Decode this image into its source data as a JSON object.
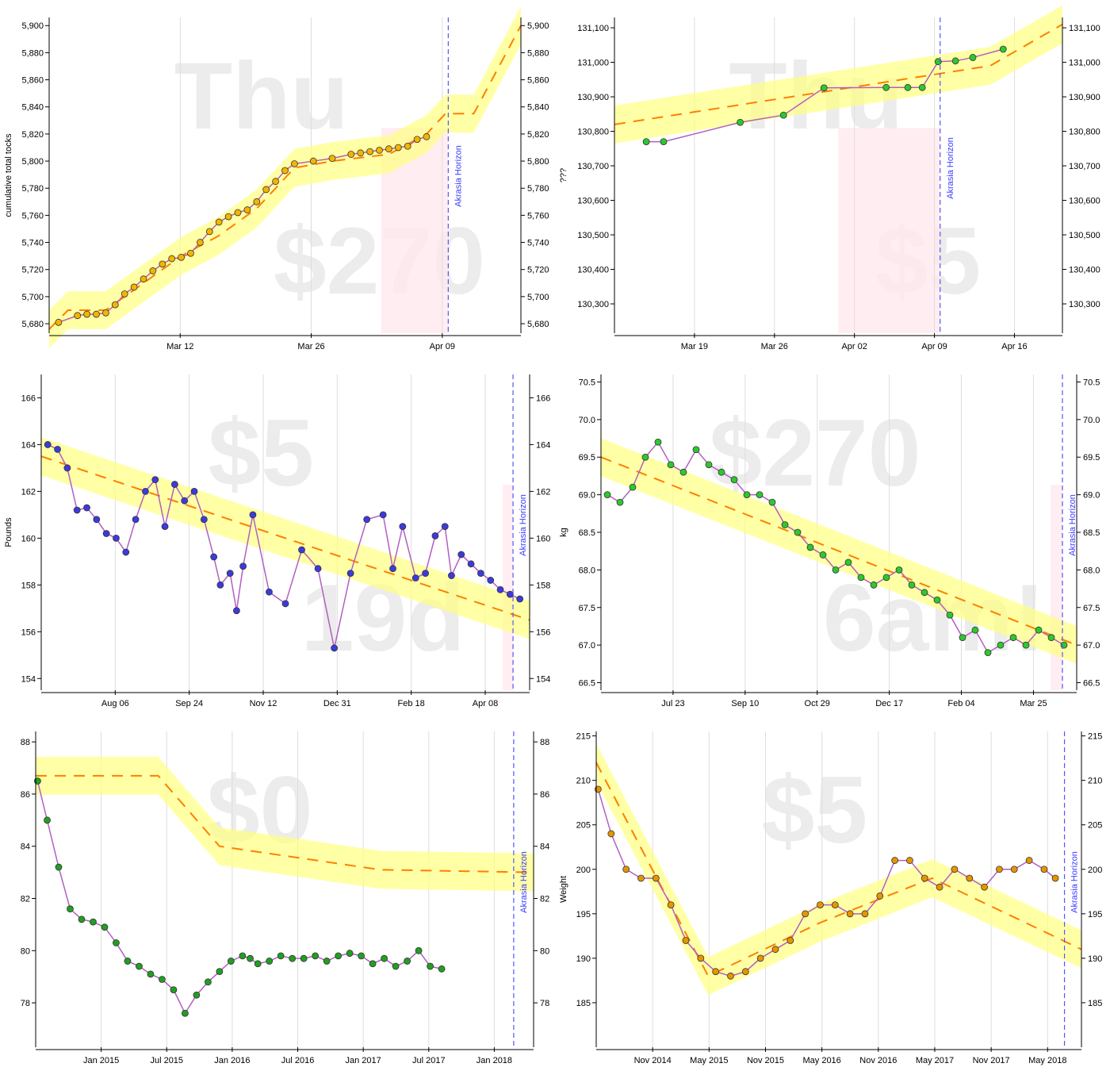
{
  "chart_data": [
    {
      "type": "line",
      "ylabel": "cumulative total tocks",
      "watermark_top": "Thu",
      "watermark_bottom": "$270",
      "horizon_label": "Akrasia Horizon",
      "x_ticks": [
        "Mar 12",
        "Mar 26",
        "Apr 09"
      ],
      "y_ticks": [
        "5,680",
        "5,700",
        "5,720",
        "5,740",
        "5,760",
        "5,780",
        "5,800",
        "5,820",
        "5,840",
        "5,860",
        "5,880",
        "5,900"
      ],
      "ylim": [
        5673,
        5906
      ],
      "xlim_days": [
        0,
        50
      ],
      "grid": true,
      "series": [
        {
          "values_x": [
            1,
            3,
            4,
            5,
            6,
            7,
            8,
            9,
            10,
            11,
            12,
            13,
            14,
            15,
            16,
            17,
            18,
            19,
            20,
            21,
            22,
            23,
            24,
            25,
            26,
            28,
            30,
            32,
            33,
            34,
            35,
            36,
            37,
            38,
            39,
            40
          ],
          "values_y": [
            5681,
            5686,
            5687,
            5687,
            5688,
            5694,
            5702,
            5707,
            5713,
            5719,
            5724,
            5728,
            5729,
            5732,
            5740,
            5748,
            5755,
            5759,
            5762,
            5764,
            5770,
            5779,
            5785,
            5793,
            5798,
            5800,
            5802,
            5805,
            5806,
            5807,
            5808,
            5809,
            5810,
            5811,
            5816,
            5818
          ]
        }
      ],
      "road": [
        [
          0,
          5676
        ],
        [
          2,
          5690
        ],
        [
          6,
          5690
        ],
        [
          10,
          5710
        ],
        [
          14,
          5730
        ],
        [
          18,
          5745
        ],
        [
          22,
          5765
        ],
        [
          26,
          5795
        ],
        [
          30,
          5800
        ],
        [
          36,
          5805
        ],
        [
          40,
          5820
        ],
        [
          42,
          5835
        ],
        [
          45,
          5835
        ],
        [
          50,
          5900
        ]
      ]
    },
    {
      "type": "line",
      "ylabel": "???",
      "watermark_top": "Thu",
      "watermark_bottom": "$5",
      "horizon_label": "Akrasia Horizon",
      "x_ticks": [
        "Mar 19",
        "Mar 26",
        "Apr 02",
        "Apr 09",
        "Apr 16"
      ],
      "y_ticks": [
        "130,300",
        "130,400",
        "130,500",
        "130,600",
        "130,700",
        "130,800",
        "130,900",
        "131,000",
        "131,100"
      ],
      "ylim": [
        130215,
        131130
      ],
      "xlim_days": [
        -1,
        30
      ],
      "grid": true,
      "series": [
        {
          "values_x": [
            1.2,
            2.4,
            7.7,
            10.7,
            13.5,
            17.8,
            19.3,
            20.3,
            21.4,
            22.6,
            23.8,
            25.9
          ],
          "values_y": [
            130770,
            130770,
            130826,
            130847,
            130926,
            130927,
            130927,
            130927,
            131002,
            131004,
            131014,
            131038
          ]
        }
      ],
      "road": [
        [
          -1,
          130820
        ],
        [
          25,
          130990
        ],
        [
          30,
          131110
        ]
      ]
    },
    {
      "type": "line",
      "ylabel": "Pounds",
      "watermark_top": "$5",
      "watermark_bottom": "19d",
      "horizon_label": "Akrasia Horizon",
      "x_ticks": [
        "Aug 06",
        "Sep 24",
        "Nov 12",
        "Dec 31",
        "Feb 18",
        "Apr 08"
      ],
      "y_ticks": [
        "154",
        "156",
        "158",
        "160",
        "162",
        "164",
        "166"
      ],
      "ylim": [
        153.5,
        167
      ],
      "xlim_days": [
        0,
        300
      ],
      "grid": true,
      "series": [
        {
          "values_x": [
            4,
            10,
            16,
            22,
            28,
            34,
            40,
            46,
            52,
            58,
            64,
            70,
            76,
            82,
            88,
            94,
            100,
            106,
            110,
            116,
            120,
            124,
            130,
            140,
            150,
            160,
            170,
            180,
            190,
            200,
            210,
            216,
            222,
            230,
            236,
            242,
            248,
            252,
            258,
            264,
            270,
            276,
            282,
            288,
            294
          ],
          "values_y": [
            164,
            163.8,
            163,
            161.2,
            161.3,
            160.8,
            160.2,
            160,
            159.4,
            160.8,
            162,
            162.5,
            160.5,
            162.3,
            161.6,
            162,
            160.8,
            159.2,
            158,
            158.5,
            156.9,
            158.8,
            161,
            157.7,
            157.2,
            159.5,
            158.7,
            155.3,
            158.5,
            160.8,
            161,
            158.7,
            160.5,
            158.3,
            158.5,
            160.1,
            160.5,
            158.4,
            159.3,
            158.9,
            158.5,
            158.2,
            157.8,
            157.6,
            157.4
          ]
        }
      ],
      "road": [
        [
          0,
          163.5
        ],
        [
          300,
          156.5
        ]
      ]
    },
    {
      "type": "scatter",
      "ylabel": "kg",
      "watermark_top": "$270",
      "watermark_bottom": "6am!",
      "horizon_label": "Akrasia Horizon",
      "x_ticks": [
        "Jul 23",
        "Sep 10",
        "Oct 29",
        "Dec 17",
        "Feb 04",
        "Mar 25"
      ],
      "y_ticks": [
        "66.5",
        "67.0",
        "67.5",
        "68.0",
        "68.5",
        "69.0",
        "69.5",
        "70.0",
        "70.5"
      ],
      "ylim": [
        66.4,
        70.6
      ],
      "xlim_days": [
        0,
        300
      ],
      "grid": true,
      "series": [
        {
          "values_x": [
            4,
            12,
            20,
            28,
            36,
            44,
            52,
            60,
            68,
            76,
            84,
            92,
            100,
            108,
            116,
            124,
            132,
            140,
            148,
            156,
            164,
            172,
            180,
            188,
            196,
            204,
            212,
            220,
            228,
            236,
            244,
            252,
            260,
            268,
            276,
            284,
            292
          ],
          "values_y": [
            69.0,
            68.9,
            69.1,
            69.5,
            69.7,
            69.4,
            69.3,
            69.6,
            69.4,
            69.3,
            69.2,
            69.0,
            69.0,
            68.9,
            68.6,
            68.5,
            68.3,
            68.2,
            68.0,
            68.1,
            67.9,
            67.8,
            67.9,
            68.0,
            67.8,
            67.7,
            67.6,
            67.4,
            67.1,
            67.2,
            66.9,
            67.0,
            67.1,
            67.0,
            67.2,
            67.1,
            67.0
          ]
        }
      ],
      "road": [
        [
          0,
          69.5
        ],
        [
          300,
          67.0
        ]
      ]
    },
    {
      "type": "scatter",
      "ylabel": "",
      "watermark_top": "$0",
      "watermark_bottom": "",
      "horizon_label": "Akrasia Horizon",
      "x_ticks": [
        "Jan 2015",
        "Jul 2015",
        "Jan 2016",
        "Jul 2016",
        "Jan 2017",
        "Jul 2017",
        "Jan 2018"
      ],
      "y_ticks": [
        "78",
        "80",
        "82",
        "84",
        "86",
        "88"
      ],
      "ylim": [
        76.3,
        88.4
      ],
      "xlim_days": [
        0,
        1300
      ],
      "grid": true,
      "series": [
        {
          "values_x": [
            5,
            30,
            60,
            90,
            120,
            150,
            180,
            210,
            240,
            270,
            300,
            330,
            360,
            390,
            420,
            450,
            480,
            510,
            540,
            560,
            580,
            610,
            640,
            670,
            700,
            730,
            760,
            790,
            820,
            850,
            880,
            910,
            940,
            970,
            1000,
            1030,
            1060
          ],
          "values_y": [
            86.5,
            85,
            83.2,
            81.6,
            81.2,
            81.1,
            80.9,
            80.3,
            79.6,
            79.4,
            79.1,
            78.9,
            78.5,
            77.6,
            78.3,
            78.8,
            79.2,
            79.6,
            79.8,
            79.7,
            79.5,
            79.6,
            79.8,
            79.7,
            79.7,
            79.8,
            79.6,
            79.8,
            79.9,
            79.8,
            79.5,
            79.7,
            79.4,
            79.6,
            80.0,
            79.4,
            79.3
          ]
        }
      ],
      "road": [
        [
          0,
          86.7
        ],
        [
          320,
          86.7
        ],
        [
          480,
          84
        ],
        [
          900,
          83.1
        ],
        [
          1300,
          83.0
        ]
      ]
    },
    {
      "type": "scatter",
      "ylabel": "Weight",
      "watermark_top": "$5",
      "watermark_bottom": "",
      "horizon_label": "Akrasia Horizon",
      "x_ticks": [
        "Nov 2014",
        "May 2015",
        "Nov 2015",
        "May 2016",
        "Nov 2016",
        "May 2017",
        "Nov 2017",
        "May 2018"
      ],
      "y_ticks": [
        "185",
        "190",
        "195",
        "200",
        "205",
        "210",
        "215"
      ],
      "ylim": [
        180,
        215.5
      ],
      "xlim_days": [
        0,
        1300
      ],
      "grid": true,
      "series": [
        {
          "values_x": [
            5,
            40,
            80,
            120,
            160,
            200,
            240,
            280,
            320,
            360,
            400,
            440,
            480,
            520,
            560,
            600,
            640,
            680,
            720,
            760,
            800,
            840,
            880,
            920,
            960,
            1000,
            1040,
            1080,
            1120,
            1160,
            1200,
            1230
          ],
          "values_y": [
            209,
            204,
            200,
            199,
            199,
            196,
            192,
            190,
            188.5,
            188,
            188.5,
            190,
            191,
            192,
            195,
            196,
            196,
            195,
            195,
            197,
            201,
            201,
            199,
            198,
            200,
            199,
            198,
            200,
            200,
            201,
            200,
            199
          ]
        }
      ],
      "road": [
        [
          0,
          212
        ],
        [
          300,
          188
        ],
        [
          600,
          194
        ],
        [
          900,
          199
        ],
        [
          1300,
          191
        ]
      ]
    }
  ]
}
